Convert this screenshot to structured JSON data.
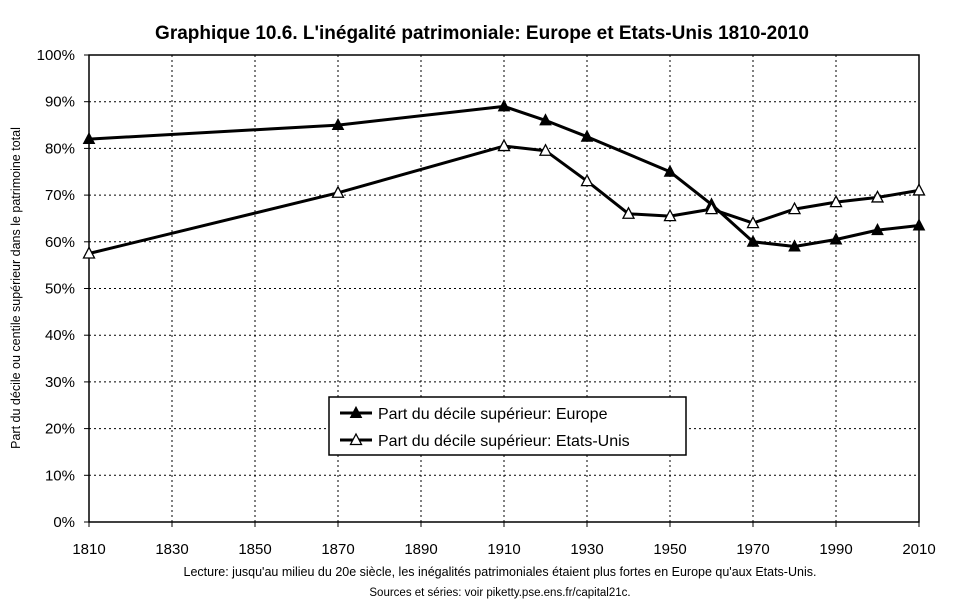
{
  "chart_data": {
    "type": "line",
    "title": "Graphique 10.6. L'inégalité patrimoniale: Europe et Etats-Unis 1810-2010",
    "ylabel": "Part du décile ou centile supérieur dans le patrimoine total",
    "xlabel": "",
    "xlim": [
      1810,
      2010
    ],
    "ylim": [
      0,
      100
    ],
    "x_ticks": [
      "1810",
      "1830",
      "1850",
      "1870",
      "1890",
      "1910",
      "1930",
      "1950",
      "1970",
      "1990",
      "2010"
    ],
    "y_ticks": [
      "0%",
      "10%",
      "20%",
      "30%",
      "40%",
      "50%",
      "60%",
      "70%",
      "80%",
      "90%",
      "100%"
    ],
    "grid": true,
    "legend_position": "center-bottom",
    "series": [
      {
        "name": "Part du décile supérieur: Europe",
        "marker": "filled-triangle",
        "x": [
          1810,
          1870,
          1910,
          1920,
          1930,
          1950,
          1960,
          1970,
          1980,
          1990,
          2000,
          2010
        ],
        "values": [
          82,
          85,
          89,
          86,
          82.5,
          75,
          68,
          60,
          59,
          60.5,
          62.5,
          63.5
        ]
      },
      {
        "name": "Part du décile supérieur: Etats-Unis",
        "marker": "hollow-triangle",
        "x": [
          1810,
          1870,
          1910,
          1920,
          1930,
          1940,
          1950,
          1960,
          1970,
          1980,
          1990,
          2000,
          2010
        ],
        "values": [
          57.5,
          70.5,
          80.5,
          79.5,
          73,
          66,
          65.5,
          67,
          64,
          67,
          68.5,
          69.5,
          71
        ]
      }
    ]
  },
  "footer": {
    "note": "Lecture: jusqu'au milieu du 20e siècle, les inégalités patrimoniales étaient plus fortes en Europe qu'aux Etats-Unis.",
    "source": "Sources et séries: voir piketty.pse.ens.fr/capital21c."
  }
}
